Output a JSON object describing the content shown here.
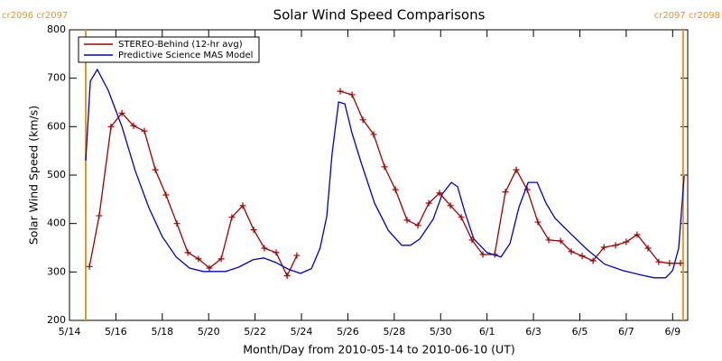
{
  "chart_data": {
    "type": "line",
    "title": "Solar Wind Speed Comparisons",
    "xlabel": "Month/Day from 2010-05-14 to 2010-06-10 (UT)",
    "ylabel": "Solar Wind Speed (km/s)",
    "xlim": [
      0,
      26.65
    ],
    "ylim": [
      200,
      800
    ],
    "yticks": [
      200,
      300,
      400,
      500,
      600,
      700,
      800
    ],
    "xticks": [
      {
        "value": 0,
        "label": "5/14"
      },
      {
        "value": 2,
        "label": "5/16"
      },
      {
        "value": 4,
        "label": "5/18"
      },
      {
        "value": 6,
        "label": "5/20"
      },
      {
        "value": 8,
        "label": "5/22"
      },
      {
        "value": 10,
        "label": "5/24"
      },
      {
        "value": 12,
        "label": "5/26"
      },
      {
        "value": 14,
        "label": "5/28"
      },
      {
        "value": 16,
        "label": "5/30"
      },
      {
        "value": 18,
        "label": "6/1"
      },
      {
        "value": 20,
        "label": "6/3"
      },
      {
        "value": 22,
        "label": "6/5"
      },
      {
        "value": 24,
        "label": "6/7"
      },
      {
        "value": 26,
        "label": "6/9"
      }
    ],
    "markers": [
      {
        "x": 0.7,
        "label": "cr2096 cr2097",
        "color": "#e8961e"
      },
      {
        "x": 26.45,
        "label": "cr2097 cr2098",
        "color": "#e8961e"
      }
    ],
    "legend": "upper left",
    "series": [
      {
        "name": "STEREO-Behind (12-hr avg)",
        "color": "#a00000",
        "marker": "+",
        "x": [
          0.86,
          1.28,
          1.79,
          2.26,
          2.76,
          3.23,
          3.7,
          4.16,
          4.63,
          5.1,
          5.56,
          6.03,
          6.54,
          7.0,
          7.47,
          7.94,
          8.4,
          8.91,
          9.38,
          9.8,
          10.5,
          11.67,
          12.18,
          12.65,
          13.11,
          13.58,
          14.05,
          14.55,
          15.02,
          15.49,
          15.95,
          16.42,
          16.89,
          17.35,
          17.82,
          18.33,
          18.79,
          19.26,
          19.73,
          20.19,
          20.66,
          21.17,
          21.63,
          22.1,
          22.57,
          23.04,
          23.54,
          24.0,
          24.47,
          24.94,
          25.4,
          25.87,
          26.34
        ],
        "values": [
          311,
          416,
          600,
          628,
          602,
          591,
          511,
          459,
          400,
          340,
          327,
          308,
          327,
          413,
          437,
          387,
          349,
          340,
          292,
          334,
          null,
          673,
          666,
          614,
          584,
          517,
          470,
          407,
          396,
          442,
          463,
          437,
          413,
          366,
          336,
          336,
          465,
          511,
          470,
          403,
          366,
          364,
          342,
          333,
          323,
          351,
          355,
          362,
          377,
          349,
          321,
          318,
          318
        ]
      },
      {
        "name": "Predictive Science MAS Model",
        "color": "#0000cc",
        "x": [
          0.7,
          0.9,
          1.2,
          1.67,
          2.26,
          2.84,
          3.42,
          4.0,
          4.6,
          5.17,
          5.76,
          6.73,
          7.3,
          7.9,
          8.37,
          8.87,
          9.46,
          9.96,
          10.43,
          10.8,
          11.09,
          11.32,
          11.6,
          11.87,
          12.18,
          12.57,
          13.15,
          13.74,
          14.32,
          14.7,
          15.1,
          15.68,
          16.07,
          16.46,
          16.73,
          17.04,
          17.43,
          18.0,
          18.6,
          18.99,
          19.37,
          19.77,
          20.16,
          20.54,
          20.93,
          21.52,
          22.3,
          23.07,
          23.85,
          24.63,
          25.2,
          25.7,
          26.0,
          26.26,
          26.5
        ],
        "values": [
          530,
          694,
          718,
          675,
          600,
          508,
          433,
          373,
          331,
          308,
          301,
          301,
          310,
          325,
          329,
          320,
          305,
          297,
          307,
          349,
          415,
          545,
          651,
          647,
          586,
          526,
          442,
          386,
          355,
          355,
          368,
          409,
          461,
          485,
          476,
          424,
          368,
          340,
          331,
          359,
          433,
          485,
          485,
          442,
          411,
          383,
          347,
          316,
          303,
          294,
          288,
          288,
          303,
          349,
          498
        ]
      }
    ]
  }
}
